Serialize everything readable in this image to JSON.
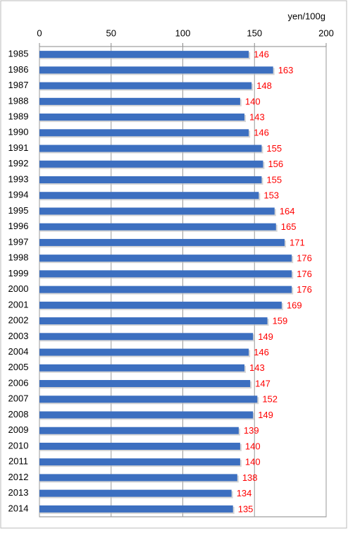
{
  "chart_data": {
    "type": "bar",
    "orientation": "horizontal",
    "unit": "yen/100g",
    "categories": [
      "1985",
      "1986",
      "1987",
      "1988",
      "1989",
      "1990",
      "1991",
      "1992",
      "1993",
      "1994",
      "1995",
      "1996",
      "1997",
      "1998",
      "1999",
      "2000",
      "2001",
      "2002",
      "2003",
      "2004",
      "2005",
      "2006",
      "2007",
      "2008",
      "2009",
      "2010",
      "2011",
      "2012",
      "2013",
      "2014"
    ],
    "values": [
      146,
      163,
      148,
      140,
      143,
      146,
      155,
      156,
      155,
      153,
      164,
      165,
      171,
      176,
      176,
      176,
      169,
      159,
      149,
      146,
      143,
      147,
      152,
      149,
      139,
      140,
      140,
      138,
      134,
      135
    ],
    "color": "#3c6fc0",
    "label_color": "#ff0000",
    "xlim": [
      0,
      200
    ],
    "xticks": [
      0,
      50,
      100,
      150,
      200
    ],
    "grid": true
  }
}
